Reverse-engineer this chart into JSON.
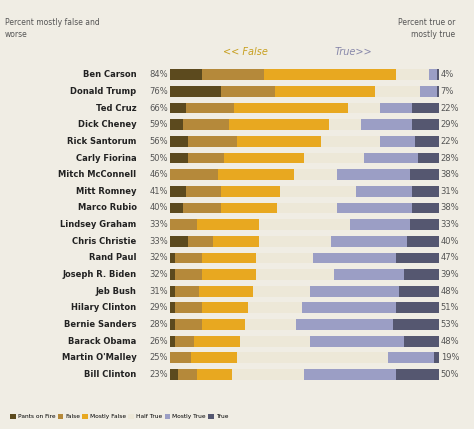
{
  "title_left": "Percent mostly false and\nworse",
  "title_right": "Percent true or\nmostly true",
  "header_false": "<< False",
  "header_true": "True>>",
  "background_color": "#f0ede4",
  "names": [
    "Ben Carson",
    "Donald Trump",
    "Ted Cruz",
    "Dick Cheney",
    "Rick Santorum",
    "Carly Fiorina",
    "Mitch McConnell",
    "Mitt Romney",
    "Marco Rubio",
    "Lindsey Graham",
    "Chris Christie",
    "Rand Paul",
    "Joseph R. Biden",
    "Jeb Bush",
    "Hilary Clinton",
    "Bernie Sanders",
    "Barack Obama",
    "Martin O'Malley",
    "Bill Clinton"
  ],
  "pct_false": [
    "84%",
    "76%",
    "66%",
    "59%",
    "56%",
    "50%",
    "46%",
    "41%",
    "40%",
    "33%",
    "33%",
    "32%",
    "32%",
    "31%",
    "29%",
    "28%",
    "26%",
    "25%",
    "23%"
  ],
  "pct_true": [
    "4%",
    "7%",
    "22%",
    "29%",
    "22%",
    "28%",
    "38%",
    "31%",
    "38%",
    "33%",
    "40%",
    "47%",
    "39%",
    "48%",
    "51%",
    "53%",
    "48%",
    "19%",
    "50%"
  ],
  "data": [
    [
      12,
      23,
      49,
      12,
      3,
      1
    ],
    [
      19,
      20,
      37,
      17,
      6,
      1
    ],
    [
      6,
      18,
      42,
      12,
      12,
      10
    ],
    [
      5,
      17,
      37,
      12,
      19,
      10
    ],
    [
      7,
      18,
      31,
      22,
      13,
      9
    ],
    [
      7,
      13,
      30,
      22,
      20,
      8
    ],
    [
      0,
      18,
      28,
      16,
      27,
      11
    ],
    [
      6,
      13,
      22,
      28,
      21,
      10
    ],
    [
      5,
      14,
      21,
      22,
      28,
      10
    ],
    [
      0,
      10,
      23,
      34,
      22,
      11
    ],
    [
      7,
      9,
      17,
      27,
      28,
      12
    ],
    [
      2,
      10,
      20,
      21,
      31,
      16
    ],
    [
      2,
      10,
      20,
      29,
      26,
      13
    ],
    [
      2,
      9,
      20,
      21,
      33,
      15
    ],
    [
      2,
      10,
      17,
      20,
      35,
      16
    ],
    [
      2,
      10,
      16,
      19,
      36,
      17
    ],
    [
      2,
      7,
      17,
      26,
      35,
      13
    ],
    [
      0,
      8,
      17,
      56,
      17,
      2
    ],
    [
      3,
      7,
      13,
      27,
      34,
      16
    ]
  ],
  "colors": [
    "#5c4a1e",
    "#b5893a",
    "#e8a820",
    "#ede8d8",
    "#9b9ec5",
    "#555770"
  ],
  "legend_labels": [
    "Pants on Fire",
    "False",
    "Mostly False",
    "Half True",
    "Mostly True",
    "True"
  ],
  "name_fontsize": 6,
  "pct_fontsize": 6,
  "header_fontsize": 7,
  "title_fontsize": 5.5
}
